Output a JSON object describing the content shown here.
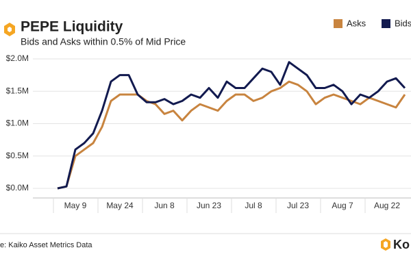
{
  "chart_data": {
    "type": "line",
    "title": "PEPE Liquidity",
    "subtitle": "Bids and Asks within 0.5% of Mid Price",
    "source": "e: Kaiko Asset Metrics Data",
    "brand": "Ko",
    "categories": [
      null,
      null,
      "May 9",
      null,
      null,
      null,
      null,
      "May 24",
      null,
      null,
      null,
      null,
      "Jun 8",
      null,
      null,
      null,
      null,
      "Jun 23",
      null,
      null,
      null,
      null,
      "Jul 8",
      null,
      null,
      null,
      null,
      "Jul 23",
      null,
      null,
      null,
      null,
      "Aug 7",
      null,
      null,
      null,
      null,
      "Aug 22",
      null,
      null
    ],
    "series": [
      {
        "name": "Asks",
        "color": "#c8843f",
        "values": [
          0,
          30000,
          500000,
          600000,
          700000,
          950000,
          1350000,
          1450000,
          1450000,
          1450000,
          1350000,
          1300000,
          1150000,
          1200000,
          1050000,
          1200000,
          1300000,
          1250000,
          1200000,
          1350000,
          1450000,
          1450000,
          1350000,
          1400000,
          1500000,
          1550000,
          1650000,
          1600000,
          1500000,
          1300000,
          1400000,
          1450000,
          1400000,
          1350000,
          1300000,
          1400000,
          1350000,
          1300000,
          1250000,
          1450000
        ]
      },
      {
        "name": "Bids",
        "color": "#121a4f",
        "values": [
          0,
          30000,
          600000,
          700000,
          850000,
          1200000,
          1650000,
          1750000,
          1750000,
          1450000,
          1330000,
          1330000,
          1380000,
          1300000,
          1350000,
          1450000,
          1400000,
          1550000,
          1400000,
          1650000,
          1550000,
          1550000,
          1700000,
          1850000,
          1800000,
          1600000,
          1950000,
          1850000,
          1750000,
          1550000,
          1550000,
          1600000,
          1500000,
          1300000,
          1450000,
          1400000,
          1500000,
          1650000,
          1700000,
          1550000
        ]
      }
    ],
    "ylim": [
      0,
      2000000
    ],
    "yticks": [
      {
        "value": 0,
        "label": "$0.0M"
      },
      {
        "value": 500000,
        "label": "$0.5M"
      },
      {
        "value": 1000000,
        "label": "$1.0M"
      },
      {
        "value": 1500000,
        "label": "$1.5M"
      },
      {
        "value": 2000000,
        "label": "$2.0M"
      }
    ],
    "grid": true
  }
}
